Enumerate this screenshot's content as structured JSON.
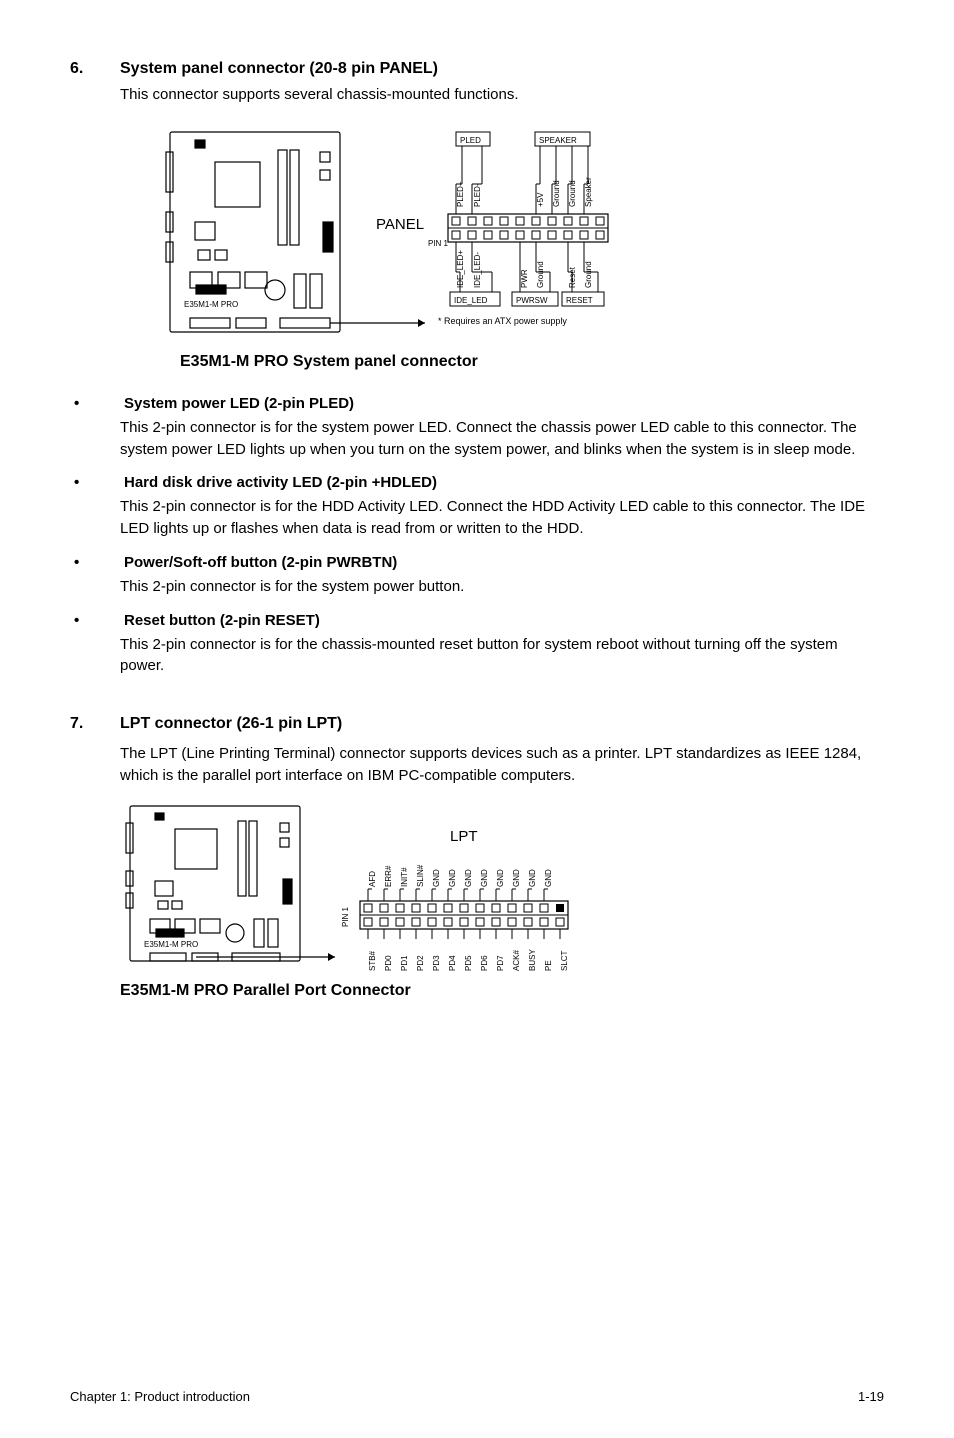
{
  "section6": {
    "num": "6.",
    "title": "System panel connector (20-8 pin PANEL)",
    "intro": "This connector supports several chassis-mounted functions.",
    "connector_name": "PANEL",
    "top_boxes": {
      "pled": "PLED",
      "speaker": "SPEAKER"
    },
    "top_pins": [
      "PLED+",
      "PLED-",
      "",
      "+5V",
      "Ground",
      "Ground",
      "Speaker"
    ],
    "bot_pins": [
      "IDE_LED+",
      "IDE_LED-",
      "",
      "PWR",
      "Ground",
      "",
      "Reset",
      "Ground"
    ],
    "bot_boxes": {
      "ide": "IDE_LED",
      "pwrsw": "PWRSW",
      "reset": "RESET"
    },
    "pin1": "PIN 1",
    "note": "* Requires an ATX power supply",
    "board_label": "E35M1-M PRO",
    "caption": "E35M1-M PRO System panel connector"
  },
  "bullets": [
    {
      "title": "System power LED (2-pin PLED)",
      "text": "This 2-pin connector is for the system power LED. Connect the chassis power LED cable to this connector. The system power LED lights up when you turn on the system power, and blinks when the system is in sleep mode."
    },
    {
      "title": "Hard disk drive activity LED (2-pin +HDLED)",
      "text": "This 2-pin connector is for the HDD Activity LED. Connect the HDD Activity LED cable to this connector. The IDE LED lights up or flashes when data is read from or written to the HDD."
    },
    {
      "title": "Power/Soft-off button (2-pin PWRBTN)",
      "text": "This 2-pin connector is for the system power button."
    },
    {
      "title": "Reset button (2-pin RESET)",
      "text": "This 2-pin connector is for the chassis-mounted reset button for system reboot without turning off the system power."
    }
  ],
  "section7": {
    "num": "7.",
    "title": "LPT connector (26-1 pin LPT)",
    "intro": "The LPT (Line Printing Terminal) connector supports devices such as a printer. LPT standardizes as IEEE 1284, which is the parallel port interface on IBM PC-compatible computers.",
    "connector_name": "LPT",
    "top_pins": [
      "AFD",
      "ERR#",
      "INIT#",
      "SLIN#",
      "GND",
      "GND",
      "GND",
      "GND",
      "GND",
      "GND",
      "GND",
      "GND"
    ],
    "bot_pins": [
      "STB#",
      "PD0",
      "PD1",
      "PD2",
      "PD3",
      "PD4",
      "PD5",
      "PD6",
      "PD7",
      "ACK#",
      "BUSY",
      "PE",
      "SLCT"
    ],
    "pin1": "PIN 1",
    "board_label": "E35M1-M PRO",
    "caption": "E35M1-M PRO Parallel Port Connector"
  },
  "footer": {
    "left": "Chapter 1: Product introduction",
    "right": "1-19"
  },
  "colors": {
    "stroke": "#000",
    "fill_none": "none"
  }
}
